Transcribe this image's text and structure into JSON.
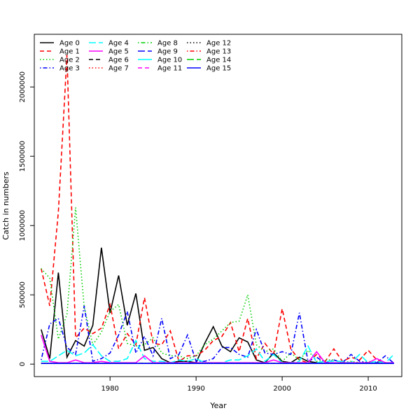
{
  "chart_data": {
    "type": "line",
    "title": "",
    "xlabel": "Year",
    "ylabel": "Catch in numbers",
    "xlim": [
      1971.2,
      2013.9
    ],
    "ylim": [
      -90000,
      2380000
    ],
    "x_ticks": [
      1980,
      1990,
      2000,
      2010
    ],
    "y_ticks": [
      0,
      500000,
      1000000,
      1500000,
      2000000
    ],
    "legend_position": "top-left",
    "x": [
      1972,
      1973,
      1974,
      1975,
      1976,
      1977,
      1978,
      1979,
      1980,
      1981,
      1982,
      1983,
      1984,
      1985,
      1986,
      1987,
      1988,
      1989,
      1990,
      1991,
      1992,
      1993,
      1994,
      1995,
      1996,
      1997,
      1998,
      1999,
      2000,
      2001,
      2002,
      2003,
      2004,
      2005,
      2006,
      2007,
      2008,
      2009,
      2010,
      2011,
      2012,
      2013
    ],
    "series": [
      {
        "name": "Age 0",
        "color": "#000000",
        "dash": "solid",
        "values": [
          250000,
          40000,
          660000,
          50000,
          170000,
          130000,
          280000,
          840000,
          370000,
          640000,
          280000,
          510000,
          100000,
          120000,
          40000,
          10000,
          20000,
          20000,
          10000,
          150000,
          270000,
          130000,
          90000,
          190000,
          160000,
          30000,
          10000,
          80000,
          20000,
          10000,
          50000,
          20000,
          10000,
          5000,
          5000,
          5000,
          5000,
          5000,
          5000,
          5000,
          5000,
          5000
        ]
      },
      {
        "name": "Age 1",
        "color": "#FF0000",
        "dash": "dashed",
        "values": [
          690000,
          420000,
          1100000,
          2230000,
          190000,
          260000,
          220000,
          260000,
          430000,
          110000,
          220000,
          140000,
          480000,
          150000,
          140000,
          240000,
          20000,
          60000,
          60000,
          100000,
          170000,
          200000,
          300000,
          90000,
          330000,
          40000,
          150000,
          70000,
          400000,
          110000,
          30000,
          10000,
          70000,
          20000,
          110000,
          20000,
          50000,
          30000,
          100000,
          30000,
          10000,
          5000
        ]
      },
      {
        "name": "Age 2",
        "color": "#00CD00",
        "dash": "dotted",
        "values": [
          690000,
          620000,
          180000,
          360000,
          1130000,
          410000,
          140000,
          230000,
          380000,
          430000,
          150000,
          130000,
          140000,
          190000,
          80000,
          60000,
          60000,
          40000,
          60000,
          140000,
          180000,
          240000,
          300000,
          310000,
          500000,
          140000,
          90000,
          110000,
          20000,
          80000,
          30000,
          100000,
          20000,
          30000,
          30000,
          10000,
          20000,
          10000,
          20000,
          10000,
          10000,
          5000
        ]
      },
      {
        "name": "Age 3",
        "color": "#0000FF",
        "dash": "dashdot",
        "values": [
          30000,
          290000,
          330000,
          120000,
          70000,
          420000,
          20000,
          40000,
          80000,
          210000,
          380000,
          80000,
          200000,
          60000,
          330000,
          40000,
          70000,
          210000,
          20000,
          20000,
          40000,
          120000,
          120000,
          70000,
          50000,
          250000,
          80000,
          70000,
          90000,
          70000,
          370000,
          20000,
          50000,
          10000,
          30000,
          10000,
          70000,
          20000,
          10000,
          10000,
          60000,
          5000
        ]
      },
      {
        "name": "Age 4",
        "color": "#00FFFF",
        "dash": "longdash",
        "values": [
          20000,
          20000,
          60000,
          100000,
          60000,
          80000,
          140000,
          60000,
          20000,
          20000,
          40000,
          170000,
          40000,
          20000,
          20000,
          10000,
          30000,
          20000,
          40000,
          10000,
          10000,
          10000,
          30000,
          30000,
          60000,
          110000,
          20000,
          70000,
          10000,
          10000,
          20000,
          130000,
          10000,
          20000,
          20000,
          20000,
          10000,
          70000,
          10000,
          20000,
          10000,
          70000
        ]
      },
      {
        "name": "Age 5",
        "color": "#FF00FF",
        "dash": "solid",
        "values": [
          210000,
          20000,
          10000,
          10000,
          30000,
          10000,
          10000,
          20000,
          10000,
          10000,
          10000,
          10000,
          60000,
          10000,
          10000,
          10000,
          10000,
          10000,
          10000,
          10000,
          10000,
          10000,
          10000,
          10000,
          10000,
          10000,
          10000,
          30000,
          10000,
          10000,
          10000,
          10000,
          90000,
          10000,
          10000,
          10000,
          10000,
          10000,
          10000,
          40000,
          10000,
          10000
        ]
      },
      {
        "name": "Age 6",
        "color": "#000000",
        "dash": "dashed",
        "values": [
          5000,
          5000,
          5000,
          5000,
          5000,
          5000,
          5000,
          5000,
          5000,
          5000,
          5000,
          5000,
          5000,
          5000,
          5000,
          5000,
          5000,
          5000,
          5000,
          5000,
          5000,
          5000,
          5000,
          5000,
          5000,
          5000,
          5000,
          5000,
          5000,
          5000,
          5000,
          5000,
          5000,
          5000,
          5000,
          5000,
          5000,
          5000,
          5000,
          5000,
          5000,
          5000
        ]
      },
      {
        "name": "Age 7",
        "color": "#FF0000",
        "dash": "dotted",
        "values": [
          5000,
          5000,
          5000,
          5000,
          5000,
          5000,
          5000,
          5000,
          5000,
          5000,
          5000,
          5000,
          5000,
          5000,
          5000,
          5000,
          5000,
          5000,
          5000,
          5000,
          5000,
          5000,
          5000,
          5000,
          5000,
          5000,
          5000,
          5000,
          5000,
          5000,
          5000,
          5000,
          5000,
          5000,
          5000,
          5000,
          5000,
          5000,
          5000,
          5000,
          5000,
          5000
        ]
      },
      {
        "name": "Age 8",
        "color": "#00CD00",
        "dash": "dashdot",
        "values": [
          5000,
          5000,
          5000,
          5000,
          5000,
          5000,
          5000,
          5000,
          5000,
          5000,
          5000,
          5000,
          5000,
          5000,
          5000,
          5000,
          5000,
          5000,
          5000,
          5000,
          5000,
          5000,
          5000,
          5000,
          5000,
          5000,
          5000,
          5000,
          5000,
          5000,
          5000,
          5000,
          5000,
          5000,
          5000,
          5000,
          5000,
          5000,
          5000,
          5000,
          5000,
          5000
        ]
      },
      {
        "name": "Age 9",
        "color": "#0000FF",
        "dash": "longdash",
        "values": [
          5000,
          5000,
          5000,
          5000,
          5000,
          5000,
          5000,
          5000,
          5000,
          5000,
          5000,
          5000,
          5000,
          5000,
          5000,
          5000,
          5000,
          5000,
          5000,
          5000,
          5000,
          5000,
          5000,
          5000,
          5000,
          5000,
          5000,
          5000,
          5000,
          5000,
          5000,
          5000,
          5000,
          5000,
          5000,
          5000,
          5000,
          5000,
          5000,
          5000,
          5000,
          5000
        ]
      },
      {
        "name": "Age 10",
        "color": "#00FFFF",
        "dash": "solid",
        "values": [
          5000,
          5000,
          5000,
          5000,
          5000,
          5000,
          5000,
          5000,
          5000,
          5000,
          5000,
          5000,
          5000,
          5000,
          5000,
          5000,
          5000,
          5000,
          5000,
          5000,
          5000,
          5000,
          5000,
          5000,
          5000,
          5000,
          5000,
          5000,
          5000,
          5000,
          5000,
          5000,
          5000,
          5000,
          5000,
          5000,
          5000,
          5000,
          5000,
          5000,
          5000,
          5000
        ]
      },
      {
        "name": "Age 11",
        "color": "#FF00FF",
        "dash": "dashed",
        "values": [
          5000,
          5000,
          5000,
          5000,
          5000,
          5000,
          5000,
          5000,
          5000,
          5000,
          5000,
          5000,
          5000,
          5000,
          5000,
          5000,
          5000,
          5000,
          5000,
          5000,
          5000,
          5000,
          5000,
          5000,
          5000,
          5000,
          5000,
          5000,
          5000,
          5000,
          5000,
          5000,
          5000,
          5000,
          5000,
          5000,
          5000,
          5000,
          5000,
          5000,
          5000,
          5000
        ]
      },
      {
        "name": "Age 12",
        "color": "#000000",
        "dash": "dotted",
        "values": [
          5000,
          5000,
          5000,
          5000,
          5000,
          5000,
          5000,
          5000,
          5000,
          5000,
          5000,
          5000,
          5000,
          5000,
          5000,
          5000,
          5000,
          5000,
          5000,
          5000,
          5000,
          5000,
          5000,
          5000,
          5000,
          5000,
          5000,
          5000,
          5000,
          5000,
          5000,
          5000,
          5000,
          5000,
          5000,
          5000,
          5000,
          5000,
          5000,
          5000,
          5000,
          5000
        ]
      },
      {
        "name": "Age 13",
        "color": "#FF0000",
        "dash": "dashdot",
        "values": [
          5000,
          5000,
          5000,
          5000,
          5000,
          5000,
          5000,
          5000,
          5000,
          5000,
          5000,
          5000,
          5000,
          5000,
          5000,
          5000,
          5000,
          5000,
          5000,
          5000,
          5000,
          5000,
          5000,
          5000,
          5000,
          5000,
          5000,
          5000,
          5000,
          5000,
          5000,
          5000,
          5000,
          5000,
          5000,
          5000,
          5000,
          5000,
          5000,
          5000,
          5000,
          5000
        ]
      },
      {
        "name": "Age 14",
        "color": "#00CD00",
        "dash": "longdash",
        "values": [
          5000,
          5000,
          5000,
          5000,
          5000,
          5000,
          5000,
          5000,
          5000,
          5000,
          5000,
          5000,
          5000,
          5000,
          5000,
          5000,
          5000,
          5000,
          5000,
          5000,
          5000,
          5000,
          5000,
          5000,
          5000,
          5000,
          5000,
          5000,
          5000,
          5000,
          5000,
          5000,
          5000,
          5000,
          5000,
          5000,
          5000,
          5000,
          5000,
          5000,
          5000,
          5000
        ]
      },
      {
        "name": "Age 15",
        "color": "#0000FF",
        "dash": "solid",
        "values": [
          5000,
          5000,
          5000,
          5000,
          5000,
          5000,
          5000,
          5000,
          5000,
          5000,
          5000,
          5000,
          5000,
          5000,
          5000,
          5000,
          5000,
          5000,
          5000,
          5000,
          5000,
          5000,
          5000,
          5000,
          5000,
          5000,
          5000,
          5000,
          5000,
          5000,
          5000,
          5000,
          5000,
          5000,
          5000,
          5000,
          5000,
          5000,
          5000,
          5000,
          5000,
          5000
        ]
      }
    ]
  }
}
